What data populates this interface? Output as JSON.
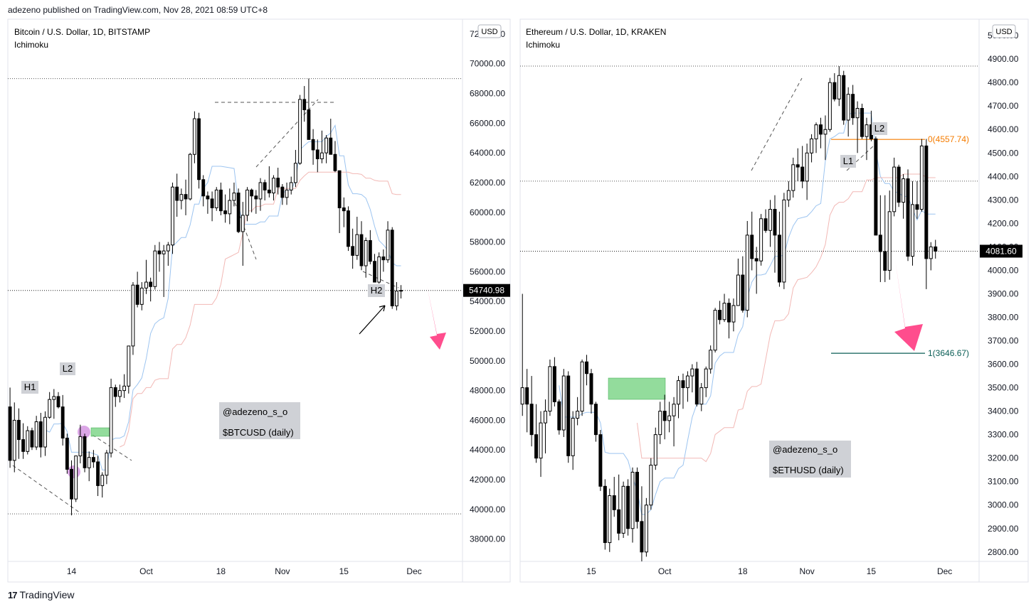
{
  "header": {
    "published_line": "adezeno published on TradingView.com, Nov 28, 2021 08:59 UTC+8"
  },
  "footer": {
    "logo_mark": "17",
    "logo_text": "TradingView"
  },
  "chart_data": [
    {
      "type": "candlestick",
      "title": "Bitcoin / U.S. Dollar, 1D, BITSTAMP",
      "indicator": "Ichimoku",
      "currency_label": "USD",
      "ylim": [
        36500,
        73000
      ],
      "y_ticks": [
        "38000.00",
        "40000.00",
        "42000.00",
        "44000.00",
        "46000.00",
        "48000.00",
        "50000.00",
        "52000.00",
        "54000.00",
        "56000.00",
        "58000.00",
        "60000.00",
        "62000.00",
        "64000.00",
        "66000.00",
        "68000.00",
        "70000.00",
        "72000.00"
      ],
      "x_ticks": [
        {
          "label": "14",
          "x": 14
        },
        {
          "label": "Oct",
          "x": 31
        },
        {
          "label": "18",
          "x": 48
        },
        {
          "label": "Nov",
          "x": 62
        },
        {
          "label": "15",
          "x": 76
        },
        {
          "label": "Dec",
          "x": 92
        }
      ],
      "x_range": [
        -0.5,
        103
      ],
      "last_price": "54740.98",
      "last_price_value": 54740.98,
      "reference_lines": [
        69000,
        39700
      ],
      "candles": [
        [
          46900,
          48200,
          42800,
          43300
        ],
        [
          43300,
          47200,
          42500,
          46000
        ],
        [
          46000,
          46800,
          43400,
          44700
        ],
        [
          44700,
          45800,
          43400,
          43900
        ],
        [
          43900,
          45600,
          43700,
          45300
        ],
        [
          45300,
          45500,
          44000,
          44200
        ],
        [
          44200,
          46300,
          44000,
          45900
        ],
        [
          45900,
          46500,
          43500,
          44200
        ],
        [
          44200,
          46600,
          43600,
          46200
        ],
        [
          46200,
          47900,
          46100,
          47400
        ],
        [
          47400,
          48100,
          46100,
          47600
        ],
        [
          47600,
          47900,
          46800,
          46900
        ],
        [
          46900,
          47700,
          44300,
          44800
        ],
        [
          44800,
          45100,
          42400,
          42700
        ],
        [
          42700,
          43300,
          39600,
          40700
        ],
        [
          40700,
          43600,
          40500,
          43600
        ],
        [
          43600,
          45700,
          43100,
          44900
        ],
        [
          44900,
          45100,
          42500,
          42800
        ],
        [
          42800,
          43900,
          41900,
          43500
        ],
        [
          43500,
          44000,
          42800,
          43200
        ],
        [
          43200,
          43600,
          40900,
          41600
        ],
        [
          41600,
          42500,
          40800,
          42300
        ],
        [
          42300,
          44000,
          41700,
          43800
        ],
        [
          43800,
          48800,
          43500,
          48200
        ],
        [
          48200,
          48400,
          46900,
          47600
        ],
        [
          47600,
          48400,
          47200,
          48000
        ],
        [
          48000,
          49100,
          47500,
          48300
        ],
        [
          48300,
          51000,
          47800,
          51000
        ],
        [
          51000,
          55300,
          50400,
          55100
        ],
        [
          55100,
          56000,
          53600,
          53800
        ],
        [
          53800,
          55300,
          53400,
          54900
        ],
        [
          54900,
          56800,
          54500,
          55300
        ],
        [
          55300,
          55600,
          54000,
          55000
        ],
        [
          55000,
          57800,
          54800,
          57400
        ],
        [
          57400,
          58000,
          56000,
          57200
        ],
        [
          57200,
          57800,
          54300,
          57400
        ],
        [
          57400,
          58000,
          56400,
          57800
        ],
        [
          57800,
          62000,
          57200,
          61700
        ],
        [
          61700,
          62600,
          59700,
          60800
        ],
        [
          60800,
          61600,
          60200,
          61200
        ],
        [
          61200,
          62200,
          59800,
          60900
        ],
        [
          60900,
          64000,
          60800,
          63900
        ],
        [
          63900,
          66800,
          63300,
          66300
        ],
        [
          66300,
          66700,
          61600,
          62200
        ],
        [
          62200,
          62500,
          60400,
          61100
        ],
        [
          61100,
          61400,
          59900,
          60900
        ],
        [
          60900,
          61400,
          59400,
          60300
        ],
        [
          60300,
          61700,
          60100,
          61500
        ],
        [
          61500,
          62000,
          59800,
          60100
        ],
        [
          60100,
          61200,
          59300,
          59900
        ],
        [
          59900,
          61600,
          59200,
          60800
        ],
        [
          60800,
          62000,
          60400,
          61300
        ],
        [
          61300,
          61600,
          58600,
          58700
        ],
        [
          58700,
          60700,
          56400,
          59800
        ],
        [
          59800,
          61700,
          59400,
          61500
        ],
        [
          61500,
          61600,
          60000,
          61100
        ],
        [
          61100,
          61500,
          59900,
          60900
        ],
        [
          60900,
          62300,
          60100,
          62000
        ],
        [
          62000,
          62200,
          60800,
          61500
        ],
        [
          61500,
          63100,
          61000,
          61300
        ],
        [
          61300,
          62500,
          60800,
          62300
        ],
        [
          62300,
          63000,
          61200,
          61700
        ],
        [
          61700,
          61900,
          60500,
          61000
        ],
        [
          61000,
          62000,
          60500,
          61500
        ],
        [
          61500,
          62400,
          61200,
          62000
        ],
        [
          62000,
          64200,
          61700,
          63300
        ],
        [
          63300,
          67900,
          63200,
          67600
        ],
        [
          67600,
          68500,
          66100,
          66900
        ],
        [
          66900,
          69000,
          64900,
          64900
        ],
        [
          64900,
          65600,
          63200,
          64200
        ],
        [
          64200,
          64900,
          62700,
          63600
        ],
        [
          63600,
          65500,
          63300,
          64000
        ],
        [
          64000,
          65200,
          63300,
          65000
        ],
        [
          65000,
          66300,
          63900,
          63900
        ],
        [
          63900,
          64800,
          62700,
          62800
        ],
        [
          62800,
          62800,
          58600,
          60300
        ],
        [
          60300,
          61000,
          59000,
          60100
        ],
        [
          60100,
          60400,
          57400,
          57700
        ],
        [
          57700,
          58900,
          56200,
          57100
        ],
        [
          57100,
          59700,
          56800,
          58500
        ],
        [
          58500,
          59400,
          56100,
          56400
        ],
        [
          56400,
          58300,
          55600,
          58100
        ],
        [
          58100,
          58800,
          56500,
          56700
        ],
        [
          56700,
          57200,
          55300,
          55300
        ],
        [
          55300,
          57300,
          55200,
          57000
        ],
        [
          57000,
          57500,
          56000,
          56800
        ],
        [
          56800,
          59400,
          56600,
          58800
        ],
        [
          58800,
          59000,
          53500,
          53700
        ],
        [
          53700,
          55300,
          53400,
          54700
        ],
        [
          54700,
          55100,
          54200,
          54740.98
        ]
      ]
    },
    {
      "type": "candlestick",
      "title": "Ethereum / U.S. Dollar, 1D, KRAKEN",
      "indicator": "Ichimoku",
      "currency_label": "USD",
      "ylim": [
        2760,
        5070
      ],
      "y_ticks": [
        "2800.00",
        "2900.00",
        "3000.00",
        "3100.00",
        "3200.00",
        "3300.00",
        "3400.00",
        "3500.00",
        "3600.00",
        "3700.00",
        "3800.00",
        "3900.00",
        "4000.00",
        "4100.00",
        "4200.00",
        "4300.00",
        "4400.00",
        "4500.00",
        "4600.00",
        "4700.00",
        "4800.00",
        "4900.00",
        "5000.00"
      ],
      "x_ticks": [
        {
          "label": "15",
          "x": 15
        },
        {
          "label": "Oct",
          "x": 31
        },
        {
          "label": "18",
          "x": 48
        },
        {
          "label": "Nov",
          "x": 62
        },
        {
          "label": "15",
          "x": 76
        },
        {
          "label": "Dec",
          "x": 92
        },
        {
          "label": "15",
          "x": 107
        }
      ],
      "x_range": [
        -0.5,
        99.5
      ],
      "last_price": "4081.60",
      "last_price_value": 4081.6,
      "reference_lines": [
        4870,
        4380,
        4081.6
      ],
      "fib_levels": [
        {
          "label": "0(4557.74)",
          "value": 4557.74,
          "color": "#f57c00"
        },
        {
          "label": "1(3646.67)",
          "value": 3646.67,
          "color": "#0b5e56"
        }
      ],
      "candles": [
        [
          3430,
          3900,
          3380,
          3500
        ],
        [
          3500,
          3580,
          3310,
          3430
        ],
        [
          3430,
          3550,
          3250,
          3300
        ],
        [
          3300,
          3430,
          3180,
          3200
        ],
        [
          3200,
          3400,
          3120,
          3350
        ],
        [
          3350,
          3450,
          3220,
          3400
        ],
        [
          3400,
          3620,
          3380,
          3590
        ],
        [
          3590,
          3630,
          3420,
          3440
        ],
        [
          3440,
          3450,
          3300,
          3320
        ],
        [
          3320,
          3580,
          3290,
          3550
        ],
        [
          3550,
          3570,
          3180,
          3210
        ],
        [
          3210,
          3400,
          3150,
          3370
        ],
        [
          3370,
          3460,
          3340,
          3400
        ],
        [
          3400,
          3620,
          3380,
          3610
        ],
        [
          3610,
          3640,
          3510,
          3560
        ],
        [
          3560,
          3580,
          3390,
          3430
        ],
        [
          3430,
          3440,
          3270,
          3300
        ],
        [
          3300,
          3320,
          3060,
          3080
        ],
        [
          3080,
          3110,
          2810,
          2840
        ],
        [
          2840,
          3070,
          2800,
          3040
        ],
        [
          3040,
          3120,
          2950,
          2980
        ],
        [
          2980,
          3130,
          2850,
          2880
        ],
        [
          2880,
          3100,
          2860,
          3080
        ],
        [
          3080,
          3110,
          2870,
          2900
        ],
        [
          2900,
          3160,
          2840,
          3140
        ],
        [
          3140,
          3160,
          2900,
          2930
        ],
        [
          2930,
          3080,
          2760,
          2800
        ],
        [
          2800,
          3030,
          2780,
          3000
        ],
        [
          3000,
          3200,
          2980,
          3170
        ],
        [
          3170,
          3330,
          3150,
          3300
        ],
        [
          3300,
          3440,
          3260,
          3400
        ],
        [
          3400,
          3470,
          3280,
          3360
        ],
        [
          3360,
          3440,
          3310,
          3380
        ],
        [
          3380,
          3460,
          3250,
          3430
        ],
        [
          3430,
          3550,
          3370,
          3530
        ],
        [
          3530,
          3560,
          3410,
          3500
        ],
        [
          3500,
          3570,
          3440,
          3550
        ],
        [
          3550,
          3600,
          3480,
          3580
        ],
        [
          3580,
          3610,
          3420,
          3430
        ],
        [
          3430,
          3520,
          3400,
          3500
        ],
        [
          3500,
          3590,
          3460,
          3580
        ],
        [
          3580,
          3680,
          3560,
          3660
        ],
        [
          3660,
          3840,
          3650,
          3830
        ],
        [
          3830,
          3870,
          3770,
          3790
        ],
        [
          3790,
          3900,
          3780,
          3860
        ],
        [
          3860,
          3880,
          3710,
          3780
        ],
        [
          3780,
          3880,
          3740,
          3850
        ],
        [
          3850,
          4050,
          3850,
          3980
        ],
        [
          3980,
          4060,
          3820,
          3830
        ],
        [
          3830,
          4210,
          3800,
          4150
        ],
        [
          4150,
          4250,
          4000,
          4050
        ],
        [
          4050,
          4100,
          3900,
          4040
        ],
        [
          4040,
          4240,
          4020,
          4220
        ],
        [
          4220,
          4260,
          4160,
          4170
        ],
        [
          4170,
          4300,
          4100,
          4260
        ],
        [
          4260,
          4320,
          3990,
          4150
        ],
        [
          4150,
          4250,
          3930,
          3950
        ],
        [
          3950,
          4330,
          3920,
          4300
        ],
        [
          4300,
          4380,
          4270,
          4340
        ],
        [
          4340,
          4480,
          4310,
          4450
        ],
        [
          4450,
          4520,
          4380,
          4440
        ],
        [
          4440,
          4530,
          4350,
          4380
        ],
        [
          4380,
          4540,
          4300,
          4500
        ],
        [
          4500,
          4580,
          4460,
          4560
        ],
        [
          4560,
          4630,
          4500,
          4620
        ],
        [
          4620,
          4650,
          4520,
          4580
        ],
        [
          4580,
          4660,
          4470,
          4600
        ],
        [
          4600,
          4820,
          4590,
          4800
        ],
        [
          4800,
          4840,
          4720,
          4730
        ],
        [
          4730,
          4870,
          4700,
          4830
        ],
        [
          4830,
          4850,
          4620,
          4640
        ],
        [
          4640,
          4780,
          4570,
          4750
        ],
        [
          4750,
          4790,
          4620,
          4650
        ],
        [
          4650,
          4720,
          4500,
          4690
        ],
        [
          4690,
          4710,
          4560,
          4570
        ],
        [
          4570,
          4650,
          4470,
          4620
        ],
        [
          4620,
          4680,
          4550,
          4560
        ],
        [
          4560,
          4570,
          4150,
          4150
        ],
        [
          4150,
          4320,
          3950,
          4080
        ],
        [
          4080,
          4320,
          3950,
          4000
        ],
        [
          4000,
          4340,
          3960,
          4250
        ],
        [
          4250,
          4480,
          4230,
          4440
        ],
        [
          4440,
          4450,
          4270,
          4290
        ],
        [
          4290,
          4410,
          4220,
          4390
        ],
        [
          4390,
          4430,
          4040,
          4060
        ],
        [
          4060,
          4380,
          4020,
          4280
        ],
        [
          4280,
          4380,
          4220,
          4260
        ],
        [
          4260,
          4560,
          4250,
          4530
        ],
        [
          4530,
          4560,
          3920,
          4050
        ],
        [
          4050,
          4120,
          4000,
          4100
        ],
        [
          4100,
          4130,
          4050,
          4081.6
        ]
      ]
    }
  ],
  "annotations": {
    "btc": {
      "label_h1": "H1",
      "label_l2": "L2",
      "label_h2": "H2",
      "watermark_user": "@adezeno_s_o",
      "watermark_ticker": "$BTCUSD (daily)"
    },
    "eth": {
      "label_l1": "L1",
      "label_l2": "L2",
      "watermark_user": "@adezeno_s_o",
      "watermark_ticker": "$ETHUSD (daily)"
    }
  },
  "colors": {
    "candle": "#000000",
    "tenkan": "#9cc4f0",
    "kijun": "#f2b8b5",
    "arrow": "#ff4d8d",
    "green_box": "#6fd07b",
    "label_bg": "#cfd1d6",
    "circle": "#dba6e6"
  }
}
